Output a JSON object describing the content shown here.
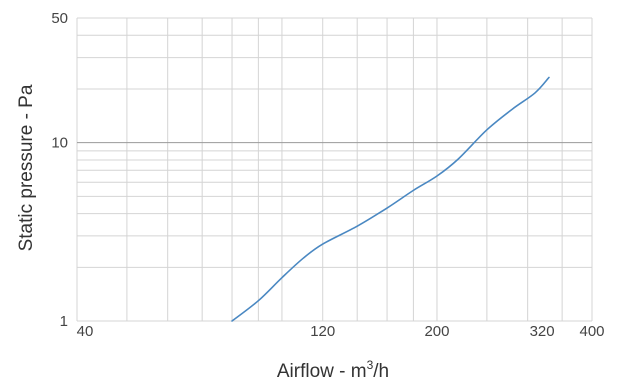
{
  "chart_data": {
    "type": "line",
    "title": "",
    "xlabel": "Airflow - m³/h",
    "xlabel_parts": {
      "before": "Airflow - m",
      "sup": "3",
      "after": "/h"
    },
    "ylabel": "Static pressure  - Pa",
    "x_scale": "log",
    "y_scale": "log",
    "xlim": [
      40,
      400
    ],
    "ylim": [
      1,
      50
    ],
    "x_ticks": [
      40,
      120,
      200,
      320,
      400
    ],
    "x_tick_labels": [
      "40",
      "120",
      "200",
      "320",
      "400"
    ],
    "y_ticks": [
      1,
      10,
      50
    ],
    "y_tick_labels": [
      "1",
      "10",
      "50"
    ],
    "x_gridlines": [
      40,
      50,
      60,
      70,
      80,
      90,
      100,
      120,
      140,
      160,
      180,
      200,
      250,
      300,
      350,
      400
    ],
    "y_gridlines": [
      1,
      2,
      3,
      4,
      5,
      6,
      7,
      8,
      9,
      10,
      20,
      30,
      40,
      50
    ],
    "grid": true,
    "legend": "none",
    "colors": {
      "line": "#4a88c2",
      "grid": "#d4d4d4",
      "major_grid": "#9a9a9a"
    },
    "series": [
      {
        "x": [
          80,
          90,
          100,
          110,
          120,
          140,
          160,
          180,
          200,
          220,
          250,
          280,
          310,
          330
        ],
        "y": [
          1.0,
          1.3,
          1.75,
          2.25,
          2.7,
          3.4,
          4.3,
          5.4,
          6.5,
          8.1,
          11.8,
          15.4,
          19.0,
          23.2
        ]
      }
    ]
  }
}
